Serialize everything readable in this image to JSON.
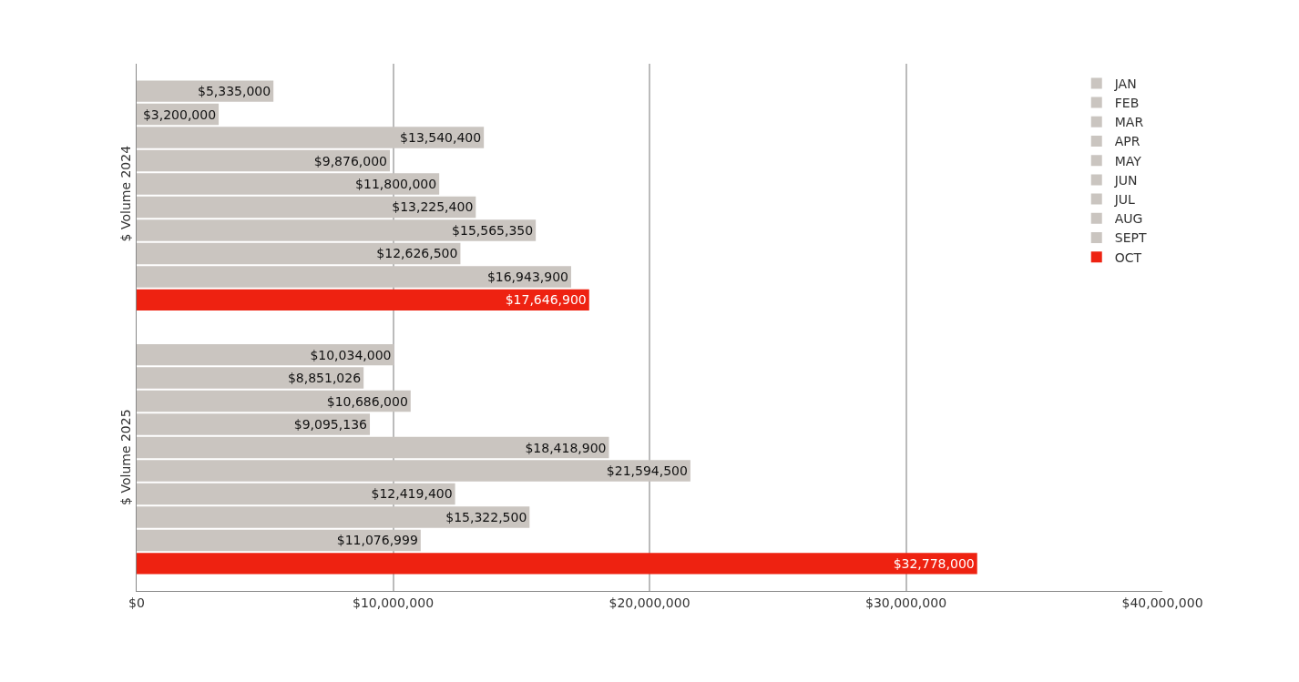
{
  "chart_data": {
    "type": "bar",
    "orientation": "horizontal",
    "categories": [
      "$ Volume 2024",
      "$ Volume 2025"
    ],
    "series": [
      {
        "name": "JAN",
        "color": "#cac5c0",
        "values": [
          5335000,
          10034000
        ],
        "value_labels": [
          "$5,335,000",
          "$10,034,000"
        ]
      },
      {
        "name": "FEB",
        "color": "#cac5c0",
        "values": [
          3200000,
          8851026
        ],
        "value_labels": [
          "$3,200,000",
          "$8,851,026"
        ]
      },
      {
        "name": "MAR",
        "color": "#cac5c0",
        "values": [
          13540400,
          10686000
        ],
        "value_labels": [
          "$13,540,400",
          "$10,686,000"
        ]
      },
      {
        "name": "APR",
        "color": "#cac5c0",
        "values": [
          9876000,
          9095136
        ],
        "value_labels": [
          "$9,876,000",
          "$9,095,136"
        ]
      },
      {
        "name": "MAY",
        "color": "#cac5c0",
        "values": [
          11800000,
          18418900
        ],
        "value_labels": [
          "$11,800,000",
          "$18,418,900"
        ]
      },
      {
        "name": "JUN",
        "color": "#cac5c0",
        "values": [
          13225400,
          21594500
        ],
        "value_labels": [
          "$13,225,400",
          "$21,594,500"
        ]
      },
      {
        "name": "JUL",
        "color": "#cac5c0",
        "values": [
          15565350,
          12419400
        ],
        "value_labels": [
          "$15,565,350",
          "$12,419,400"
        ]
      },
      {
        "name": "AUG",
        "color": "#cac5c0",
        "values": [
          12626500,
          15322500
        ],
        "value_labels": [
          "$12,626,500",
          "$15,322,500"
        ]
      },
      {
        "name": "SEPT",
        "color": "#cac5c0",
        "values": [
          16943900,
          11076999
        ],
        "value_labels": [
          "$16,943,900",
          "$11,076,999"
        ]
      },
      {
        "name": "OCT",
        "color": "#ee2211",
        "values": [
          17646900,
          32778000
        ],
        "value_labels": [
          "$17,646,900",
          "$32,778,000"
        ]
      }
    ],
    "xlim": [
      0,
      40000000
    ],
    "xticks": [
      {
        "value": 0,
        "label": "$0"
      },
      {
        "value": 10000000,
        "label": "$10,000,000"
      },
      {
        "value": 20000000,
        "label": "$20,000,000"
      },
      {
        "value": 30000000,
        "label": "$30,000,000"
      },
      {
        "value": 40000000,
        "label": "$40,000,000"
      }
    ],
    "grid": "x",
    "legend": "top right"
  }
}
